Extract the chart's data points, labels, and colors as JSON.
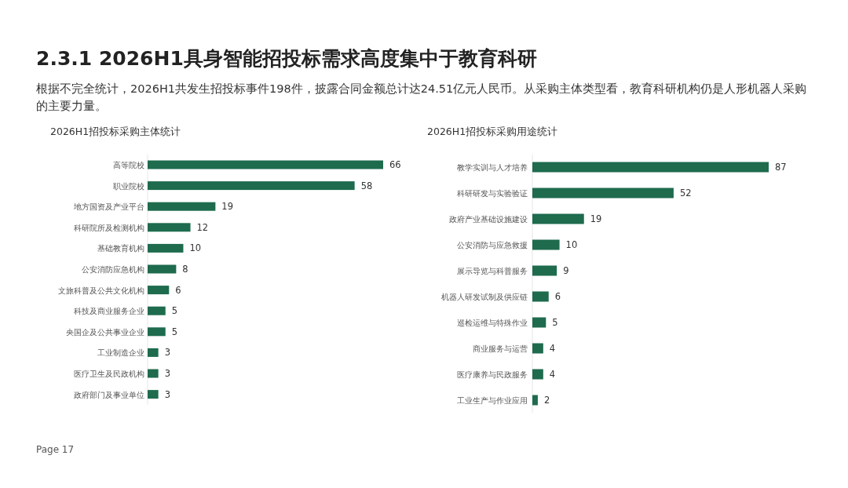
{
  "chart_data": [
    {
      "type": "other",
      "title": "2.3.1 2026H1具身智能招投标需求高度集中于教育科研",
      "subtitle": "根据不完全统计，2026H1共发生招投标事件198件，披露合同金额总计达24.51亿元人民币。从采购主体类型看，教育科研机构仍是人形机器人采购的主要力量。",
      "annotations": [
        "Page 17"
      ]
    },
    {
      "type": "bar",
      "orientation": "horizontal",
      "title": "2026H1招投标采购主体统计",
      "categories": [
        "高等院校",
        "职业院校",
        "地方国资及产业平台",
        "科研院所及检测机构",
        "基础教育机构",
        "公安消防应急机构",
        "文旅科普及公共文化机构",
        "科技及商业服务企业",
        "央国企及公共事业企业",
        "工业制造企业",
        "医疗卫生及民政机构",
        "政府部门及事业单位"
      ],
      "values": [
        66,
        58,
        19,
        12,
        10,
        8,
        6,
        5,
        5,
        3,
        3,
        3
      ],
      "color": "#1e6b4e",
      "data_labels": true
    },
    {
      "type": "bar",
      "orientation": "horizontal",
      "title": "2026H1招投标采购用途统计",
      "categories": [
        "教学实训与人才培养",
        "科研研发与实验验证",
        "政府产业基础设施建设",
        "公安消防与应急救援",
        "展示导览与科普服务",
        "机器人研发试制及供应链",
        "巡检运维与特殊作业",
        "商业服务与运营",
        "医疗康养与民政服务",
        "工业生产与作业应用"
      ],
      "values": [
        87,
        52,
        19,
        10,
        9,
        6,
        5,
        4,
        4,
        2
      ],
      "color": "#1e6b4e",
      "data_labels": true
    }
  ]
}
